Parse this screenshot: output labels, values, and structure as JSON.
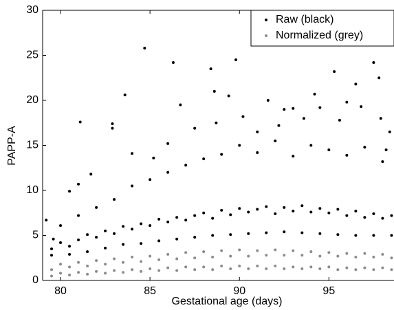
{
  "chart_data": {
    "type": "scatter",
    "xlabel": "Gestational age (days)",
    "ylabel": "PAPP-A",
    "xlim": [
      79,
      98.6
    ],
    "ylim": [
      0,
      30
    ],
    "xticks": [
      80,
      85,
      90,
      95
    ],
    "yticks": [
      0,
      5,
      10,
      15,
      20,
      25,
      30
    ],
    "legend": "upper right",
    "series": [
      {
        "name": "Raw (black)",
        "color": "#000000",
        "x": [
          84.7,
          86.3,
          88.4,
          89.8,
          95.3,
          97.5,
          97.8,
          83.6,
          81.1,
          82.9,
          82.9,
          86.7,
          88.6,
          89.4,
          94.2,
          96.5,
          96.0,
          92.5,
          93.0,
          91.6,
          79.2,
          79.6,
          80.5,
          81.0,
          81.7,
          84.0,
          85.2,
          86.0,
          87.5,
          88.7,
          90.2,
          91.0,
          92.2,
          93.6,
          94.5,
          95.6,
          96.8,
          97.9,
          98.4,
          98.2,
          79.5,
          80,
          80.5,
          81,
          81.5,
          82,
          82.5,
          83,
          83.5,
          84,
          84.5,
          85,
          85.5,
          86,
          86.5,
          87,
          87.5,
          88,
          88.5,
          89,
          89.5,
          90,
          90.5,
          91,
          91.5,
          92,
          92.5,
          93,
          93.5,
          94,
          94.5,
          95,
          95.5,
          96,
          96.5,
          97,
          97.5,
          98,
          98.5,
          79.5,
          80,
          80.5,
          81,
          81.5,
          82,
          82.5,
          83,
          83.5,
          84,
          84.5,
          85,
          85.5,
          86,
          86.5,
          87,
          87.5,
          88,
          88.5,
          89,
          89.5,
          90,
          90.5,
          91,
          91.5,
          92,
          92.5,
          93,
          93.5,
          94,
          94.5,
          95,
          95.5,
          96,
          96.5,
          97,
          97.5,
          98,
          98.5
        ],
        "values": [
          25.8,
          24.2,
          23.5,
          24.5,
          23.2,
          24.2,
          22.5,
          20.6,
          17.6,
          17.4,
          16.9,
          19.5,
          21.0,
          20.5,
          20.7,
          21.8,
          19.8,
          19.0,
          19.1,
          20.0,
          6.7,
          4.6,
          9.9,
          10.7,
          11.8,
          14.1,
          13.6,
          15.2,
          16.9,
          17.5,
          18.2,
          16.5,
          17.2,
          18.0,
          19.2,
          17.8,
          19.3,
          18.0,
          16.5,
          14.5,
          3.5,
          4.2,
          3.8,
          4.5,
          5.1,
          4.8,
          5.5,
          5.2,
          6.0,
          5.7,
          6.3,
          6.1,
          6.8,
          6.5,
          7.0,
          6.7,
          7.2,
          7.5,
          6.9,
          7.8,
          7.3,
          8.0,
          7.6,
          7.9,
          8.2,
          7.4,
          8.1,
          7.7,
          8.3,
          7.6,
          8.0,
          7.5,
          7.9,
          7.2,
          7.7,
          7.0,
          7.4,
          6.9,
          7.2,
          2.8,
          6.1,
          2.9,
          7.2,
          3.2,
          8.1,
          3.6,
          9.0,
          4.0,
          10.5,
          4.1,
          11.2,
          4.4,
          12.0,
          4.6,
          12.8,
          4.8,
          13.5,
          5.0,
          14.0,
          5.1,
          15.0,
          5.2,
          14.2,
          5.3,
          15.5,
          5.4,
          13.8,
          5.3,
          15.0,
          5.2,
          14.5,
          5.1,
          13.9,
          5.0,
          14.8,
          5.0,
          13.2,
          5.0
        ]
      },
      {
        "name": "Normalized (grey)",
        "color": "#8c8c8c",
        "x": [
          79.5,
          80,
          80.5,
          81,
          81.5,
          82,
          82.5,
          83,
          83.5,
          84,
          84.5,
          85,
          85.5,
          86,
          86.5,
          87,
          87.5,
          88,
          88.5,
          89,
          89.5,
          90,
          90.5,
          91,
          91.5,
          92,
          92.5,
          93,
          93.5,
          94,
          94.5,
          95,
          95.5,
          96,
          96.5,
          97,
          97.5,
          98,
          98.5,
          79.5,
          80,
          80.5,
          81,
          81.5,
          82,
          82.5,
          83,
          83.5,
          84,
          84.5,
          85,
          85.5,
          86,
          86.5,
          87,
          87.5,
          88,
          88.5,
          89,
          89.5,
          90,
          90.5,
          91,
          91.5,
          92,
          92.5,
          93,
          93.5,
          94,
          94.5,
          95,
          95.5,
          96,
          96.5,
          97,
          97.5,
          98,
          98.5
        ],
        "values": [
          1.2,
          1.8,
          1.5,
          2.0,
          1.6,
          2.2,
          1.8,
          2.4,
          2.0,
          2.6,
          2.1,
          2.7,
          2.3,
          2.9,
          2.4,
          3.1,
          2.5,
          3.2,
          2.6,
          3.3,
          2.7,
          3.4,
          2.7,
          3.3,
          2.8,
          3.4,
          2.8,
          3.3,
          2.8,
          3.2,
          2.7,
          3.1,
          2.7,
          3.0,
          2.6,
          3.0,
          2.6,
          2.9,
          2.5,
          0.5,
          0.8,
          0.6,
          0.9,
          0.7,
          1.0,
          0.8,
          1.1,
          0.9,
          1.2,
          1.0,
          1.3,
          1.1,
          1.4,
          1.1,
          1.5,
          1.2,
          1.5,
          1.2,
          1.6,
          1.3,
          1.6,
          1.3,
          1.6,
          1.3,
          1.6,
          1.3,
          1.5,
          1.3,
          1.5,
          1.3,
          1.5,
          1.2,
          1.4,
          1.2,
          1.4,
          1.2,
          1.4,
          1.2
        ]
      }
    ]
  }
}
